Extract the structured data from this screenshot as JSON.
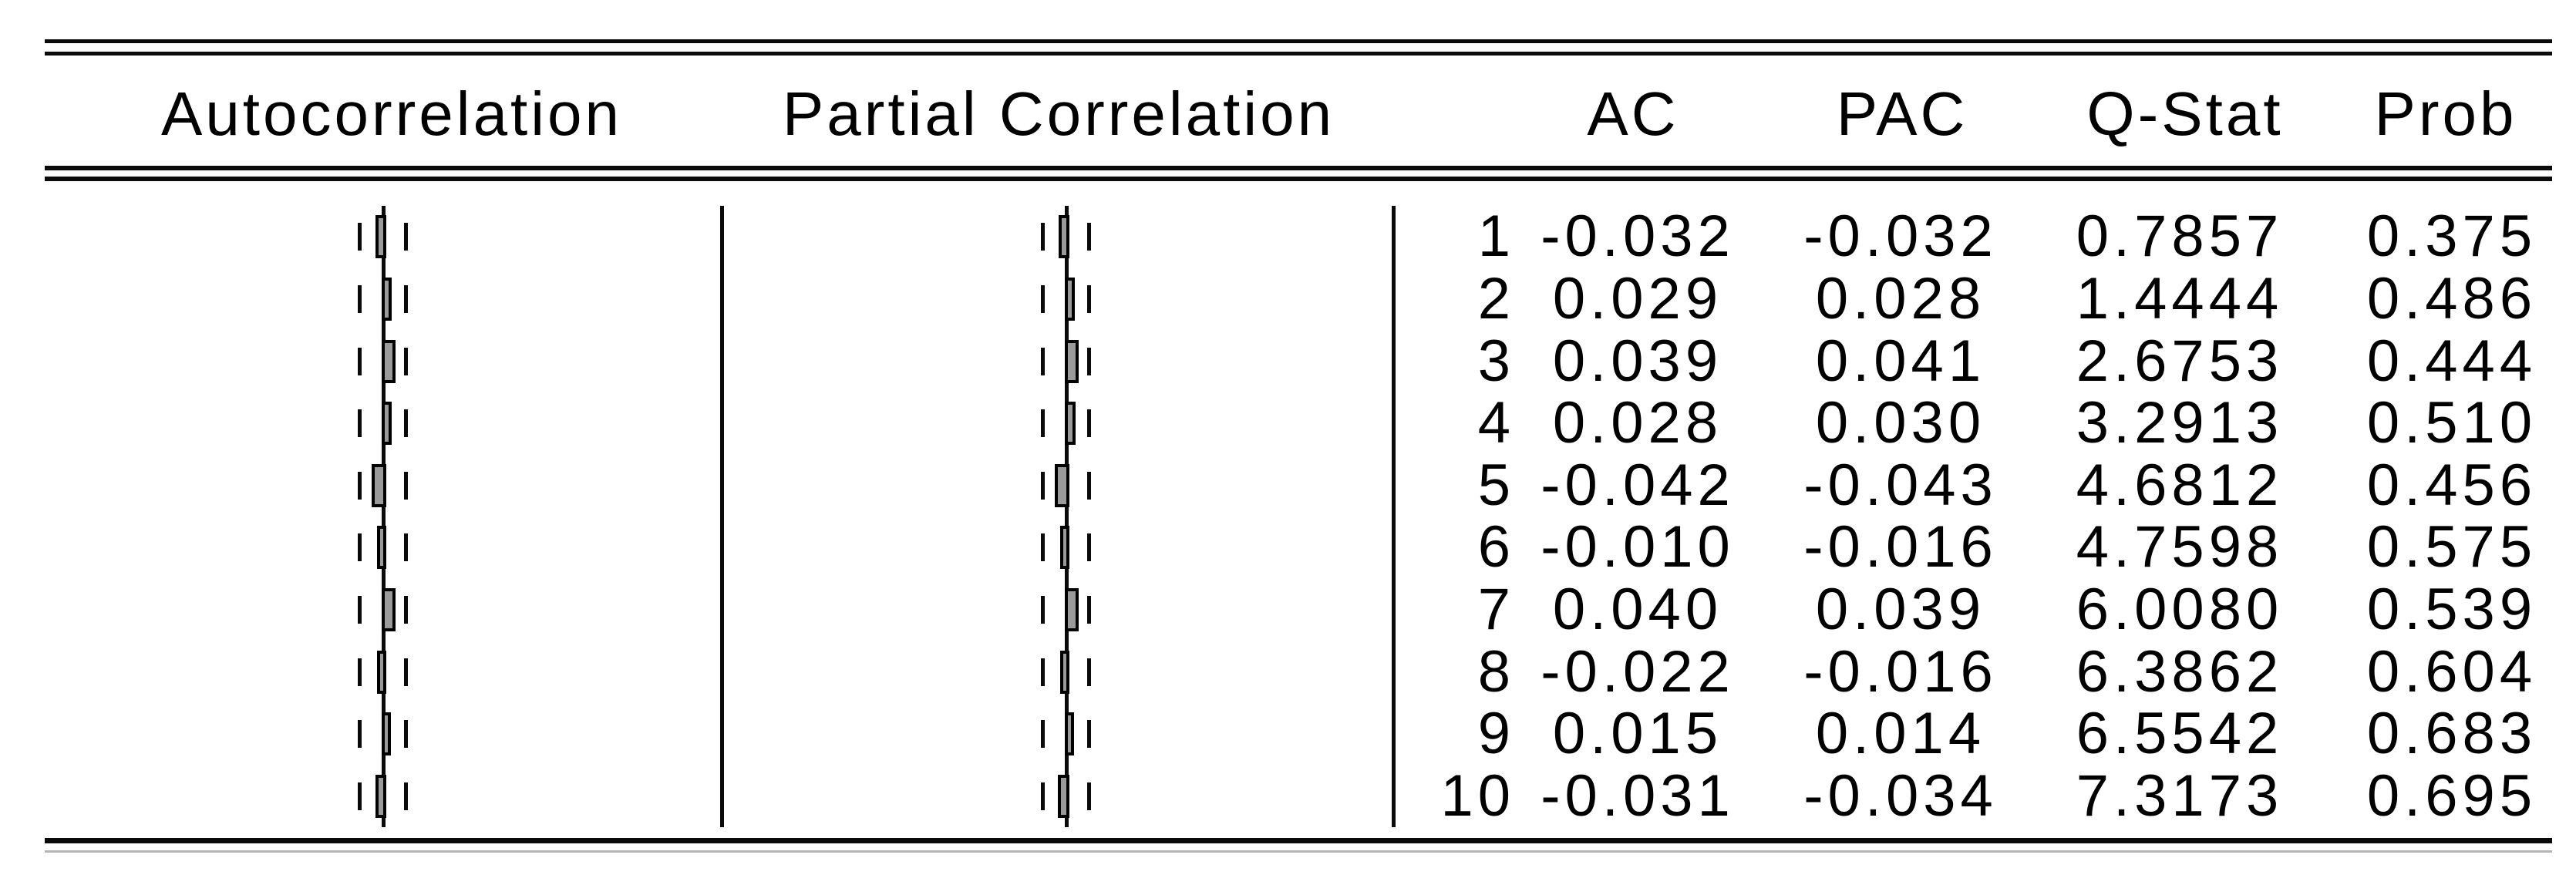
{
  "colors": {
    "line": "#0a0a0a",
    "bar_fill": "#9a9a9a",
    "bar_border": "#000000",
    "bottom_rule_gray": "#b5b5b5",
    "background": "#ffffff"
  },
  "table": {
    "headers": {
      "autocorrelation": "Autocorrelation",
      "partial_correlation": "Partial Correlation",
      "ac": "AC",
      "pac": "PAC",
      "q_stat": "Q-Stat",
      "prob": "Prob"
    }
  },
  "chart_data": {
    "type": "table",
    "description_columns": [
      "Autocorrelation",
      "Partial Correlation",
      "lag",
      "AC",
      "PAC",
      "Q-Stat",
      "Prob"
    ],
    "lags": [
      1,
      2,
      3,
      4,
      5,
      6,
      7,
      8,
      9,
      10
    ],
    "series": [
      {
        "name": "AC",
        "chart": "bar",
        "orientation": "horizontal",
        "values": [
          -0.032,
          0.029,
          0.039,
          0.028,
          -0.042,
          -0.01,
          0.04,
          -0.022,
          0.015,
          -0.031
        ]
      },
      {
        "name": "PAC",
        "chart": "bar",
        "orientation": "horizontal",
        "values": [
          -0.032,
          0.028,
          0.041,
          0.03,
          -0.043,
          -0.016,
          0.039,
          -0.016,
          0.014,
          -0.034
        ]
      }
    ],
    "q_stat": [
      0.7857,
      1.4444,
      2.6753,
      3.2913,
      4.6812,
      4.7598,
      6.008,
      6.3862,
      6.5542,
      7.3173
    ],
    "prob": [
      0.375,
      0.486,
      0.444,
      0.51,
      0.456,
      0.575,
      0.539,
      0.604,
      0.683,
      0.695
    ],
    "legend_position": "none",
    "grid": false,
    "confidence_band": "dashed vertical bounds on both sides of zero line",
    "rows_text": [
      {
        "lag": "1",
        "ac": "-0.032",
        "pac": "-0.032",
        "q_stat": "0.7857",
        "prob": "0.375"
      },
      {
        "lag": "2",
        "ac": "0.029",
        "pac": "0.028",
        "q_stat": "1.4444",
        "prob": "0.486"
      },
      {
        "lag": "3",
        "ac": "0.039",
        "pac": "0.041",
        "q_stat": "2.6753",
        "prob": "0.444"
      },
      {
        "lag": "4",
        "ac": "0.028",
        "pac": "0.030",
        "q_stat": "3.2913",
        "prob": "0.510"
      },
      {
        "lag": "5",
        "ac": "-0.042",
        "pac": "-0.043",
        "q_stat": "4.6812",
        "prob": "0.456"
      },
      {
        "lag": "6",
        "ac": "-0.010",
        "pac": "-0.016",
        "q_stat": "4.7598",
        "prob": "0.575"
      },
      {
        "lag": "7",
        "ac": "0.040",
        "pac": "0.039",
        "q_stat": "6.0080",
        "prob": "0.539"
      },
      {
        "lag": "8",
        "ac": "-0.022",
        "pac": "-0.016",
        "q_stat": "6.3862",
        "prob": "0.604"
      },
      {
        "lag": "9",
        "ac": "0.015",
        "pac": "0.014",
        "q_stat": "6.5542",
        "prob": "0.683"
      },
      {
        "lag": "10",
        "ac": "-0.031",
        "pac": "-0.034",
        "q_stat": "7.3173",
        "prob": "0.695"
      }
    ]
  }
}
